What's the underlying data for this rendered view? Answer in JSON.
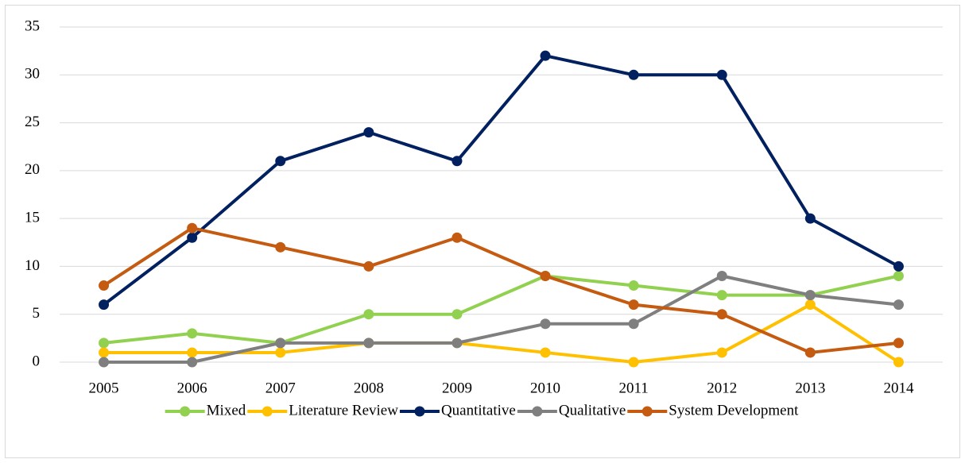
{
  "chart_data": {
    "type": "line",
    "categories": [
      "2005",
      "2006",
      "2007",
      "2008",
      "2009",
      "2010",
      "2011",
      "2012",
      "2013",
      "2014"
    ],
    "series": [
      {
        "name": "Mixed",
        "color": "#92d050",
        "values": [
          2,
          3,
          2,
          5,
          5,
          9,
          8,
          7,
          7,
          9
        ]
      },
      {
        "name": "Literature Review",
        "color": "#ffc000",
        "values": [
          1,
          1,
          1,
          2,
          2,
          1,
          0,
          1,
          6,
          0
        ]
      },
      {
        "name": "Quantitative",
        "color": "#002060",
        "values": [
          6,
          13,
          21,
          24,
          21,
          32,
          30,
          30,
          15,
          10
        ]
      },
      {
        "name": "Qualitative",
        "color": "#7f7f7f",
        "values": [
          0,
          0,
          2,
          2,
          2,
          4,
          4,
          9,
          7,
          6
        ]
      },
      {
        "name": "System Development",
        "color": "#c55a11",
        "values": [
          8,
          14,
          12,
          10,
          13,
          9,
          6,
          5,
          1,
          2
        ]
      }
    ],
    "ylim": [
      0,
      35
    ],
    "yticks": [
      0,
      5,
      10,
      15,
      20,
      25,
      30,
      35
    ],
    "grid": true,
    "legend": "bottom"
  }
}
